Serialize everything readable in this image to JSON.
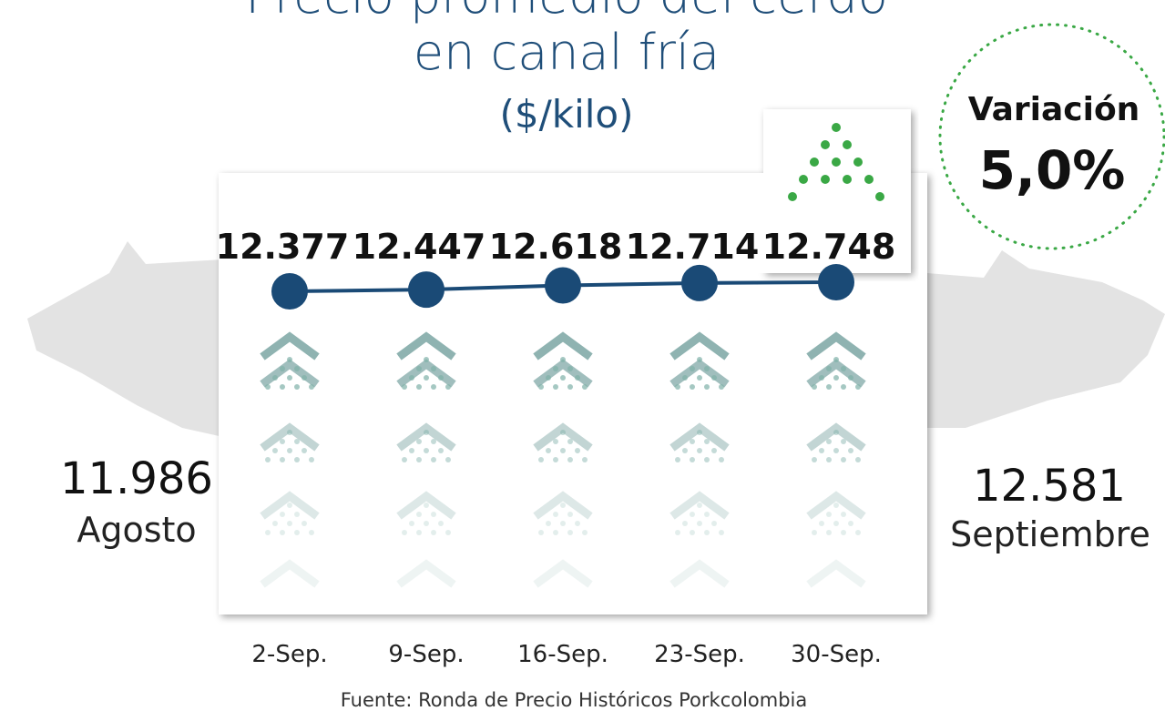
{
  "chart_data": {
    "type": "line",
    "title": "Precio promedio del cerdo",
    "title_line2": "en canal fría",
    "subtitle": "($/kilo)",
    "categories": [
      "2-Sep.",
      "9-Sep.",
      "16-Sep.",
      "23-Sep.",
      "30-Sep."
    ],
    "values": [
      12377,
      12447,
      12618,
      12714,
      12748
    ],
    "value_labels": [
      "12.377",
      "12.447",
      "12.618",
      "12.714",
      "12.748"
    ],
    "color": "#1a4a76",
    "annotations": {
      "variation_label": "Variación",
      "variation": "5,0%",
      "left_value": "11.986",
      "left_label": "Agosto",
      "right_value": "12.581",
      "right_label": "Septiembre"
    },
    "source": "Fuente: Ronda de Precio Históricos Porkcolombia"
  }
}
